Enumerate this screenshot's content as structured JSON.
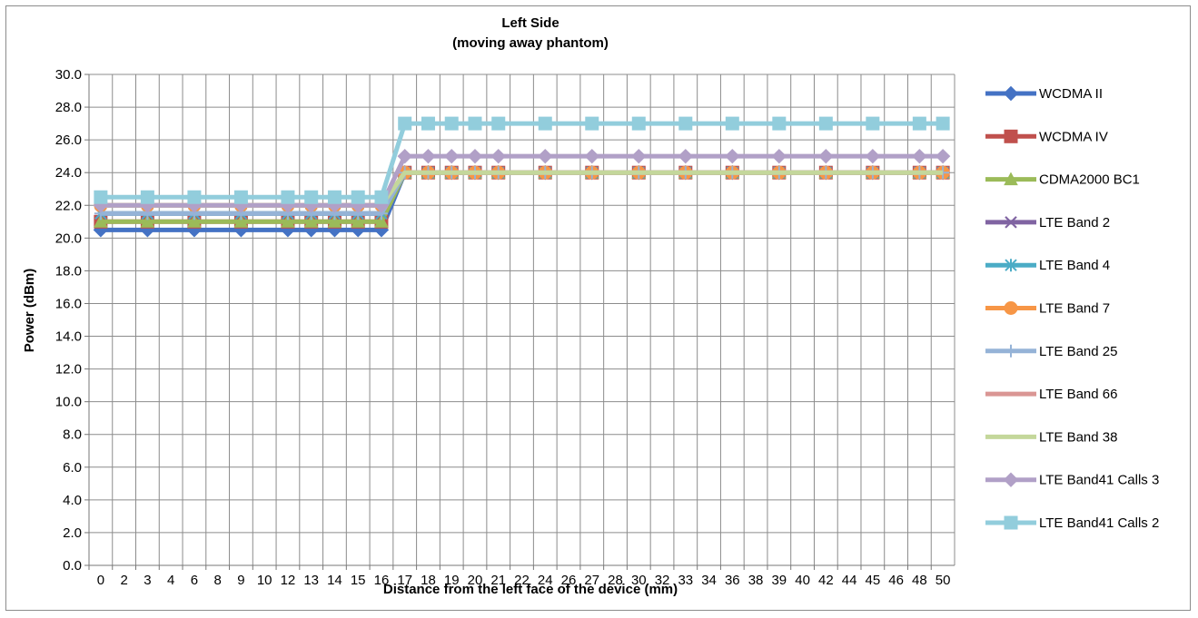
{
  "chart_data": {
    "type": "line",
    "title": [
      "Left Side",
      "(moving away phantom)"
    ],
    "xlabel": "Distance from the left face of the device (mm)",
    "ylabel": "Power (dBm)",
    "categories": [
      0,
      3,
      6,
      9,
      12,
      13,
      14,
      15,
      16,
      17,
      18,
      19,
      20,
      21,
      24,
      27,
      30,
      33,
      36,
      39,
      42,
      45,
      48,
      50
    ],
    "x_tick_labels": [
      "0",
      "2",
      "3",
      "4",
      "6",
      "8",
      "9",
      "10",
      "12",
      "13",
      "14",
      "15",
      "16",
      "17",
      "18",
      "19",
      "20",
      "21",
      "22",
      "24",
      "26",
      "27",
      "28",
      "30",
      "32",
      "33",
      "34",
      "36",
      "38",
      "39",
      "40",
      "42",
      "44",
      "45",
      "46",
      "48",
      "50"
    ],
    "y_tick_labels": [
      "0.0",
      "2.0",
      "4.0",
      "6.0",
      "8.0",
      "10.0",
      "12.0",
      "14.0",
      "16.0",
      "18.0",
      "20.0",
      "22.0",
      "24.0",
      "26.0",
      "28.0",
      "30.0"
    ],
    "ylim": [
      0,
      30
    ],
    "grid": true,
    "legend_position": "right",
    "series": [
      {
        "name": "WCDMA II",
        "color": "#4472C4",
        "marker": "diamond",
        "values": [
          20.5,
          20.5,
          20.5,
          20.5,
          20.5,
          20.5,
          20.5,
          20.5,
          20.5,
          24,
          24,
          24,
          24,
          24,
          24,
          24,
          24,
          24,
          24,
          24,
          24,
          24,
          24,
          24
        ]
      },
      {
        "name": "WCDMA IV",
        "color": "#C0504D",
        "marker": "square",
        "values": [
          21,
          21,
          21,
          21,
          21,
          21,
          21,
          21,
          21,
          24,
          24,
          24,
          24,
          24,
          24,
          24,
          24,
          24,
          24,
          24,
          24,
          24,
          24,
          24
        ]
      },
      {
        "name": "CDMA2000 BC1",
        "color": "#9BBB59",
        "marker": "triangle",
        "values": [
          21,
          21,
          21,
          21,
          21,
          21,
          21,
          21,
          21,
          24,
          24,
          24,
          24,
          24,
          24,
          24,
          24,
          24,
          24,
          24,
          24,
          24,
          24,
          24
        ]
      },
      {
        "name": "LTE Band 2",
        "color": "#8064A2",
        "marker": "x",
        "values": [
          21.5,
          21.5,
          21.5,
          21.5,
          21.5,
          21.5,
          21.5,
          21.5,
          21.5,
          24,
          24,
          24,
          24,
          24,
          24,
          24,
          24,
          24,
          24,
          24,
          24,
          24,
          24,
          24
        ]
      },
      {
        "name": "LTE Band 4",
        "color": "#4BACC6",
        "marker": "star",
        "values": [
          21.5,
          21.5,
          21.5,
          21.5,
          21.5,
          21.5,
          21.5,
          21.5,
          21.5,
          24,
          24,
          24,
          24,
          24,
          24,
          24,
          24,
          24,
          24,
          24,
          24,
          24,
          24,
          24
        ]
      },
      {
        "name": "LTE Band 7",
        "color": "#F79646",
        "marker": "circle",
        "values": [
          22,
          22,
          22,
          22,
          22,
          22,
          22,
          22,
          22,
          24,
          24,
          24,
          24,
          24,
          24,
          24,
          24,
          24,
          24,
          24,
          24,
          24,
          24,
          24
        ]
      },
      {
        "name": "LTE Band 25",
        "color": "#95B3D7",
        "marker": "plus",
        "values": [
          21.5,
          21.5,
          21.5,
          21.5,
          21.5,
          21.5,
          21.5,
          21.5,
          21.5,
          24,
          24,
          24,
          24,
          24,
          24,
          24,
          24,
          24,
          24,
          24,
          24,
          24,
          24,
          24
        ]
      },
      {
        "name": "LTE Band 66",
        "color": "#DA9694",
        "marker": "none",
        "values": [
          22,
          22,
          22,
          22,
          22,
          22,
          22,
          22,
          22,
          24,
          24,
          24,
          24,
          24,
          24,
          24,
          24,
          24,
          24,
          24,
          24,
          24,
          24,
          24
        ]
      },
      {
        "name": "LTE Band 38",
        "color": "#C4D79B",
        "marker": "none",
        "values": [
          22,
          22,
          22,
          22,
          22,
          22,
          22,
          22,
          22,
          24,
          24,
          24,
          24,
          24,
          24,
          24,
          24,
          24,
          24,
          24,
          24,
          24,
          24,
          24
        ]
      },
      {
        "name": "LTE Band41 Calls 3",
        "color": "#B1A0C7",
        "marker": "diamond",
        "values": [
          22,
          22,
          22,
          22,
          22,
          22,
          22,
          22,
          22,
          25,
          25,
          25,
          25,
          25,
          25,
          25,
          25,
          25,
          25,
          25,
          25,
          25,
          25,
          25
        ]
      },
      {
        "name": "LTE Band41 Calls 2",
        "color": "#92CDDC",
        "marker": "square",
        "values": [
          22.5,
          22.5,
          22.5,
          22.5,
          22.5,
          22.5,
          22.5,
          22.5,
          22.5,
          27,
          27,
          27,
          27,
          27,
          27,
          27,
          27,
          27,
          27,
          27,
          27,
          27,
          27,
          27
        ]
      }
    ]
  }
}
